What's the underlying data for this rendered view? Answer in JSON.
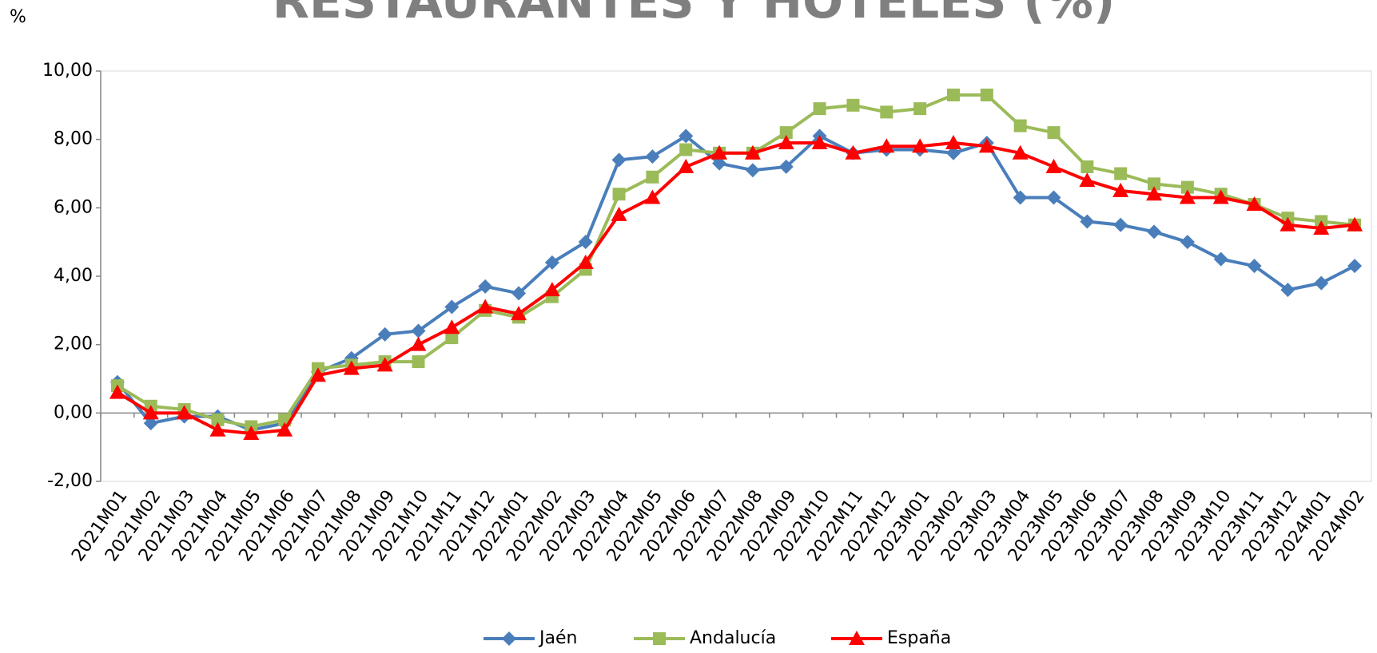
{
  "chart_data": {
    "type": "line",
    "title": "RESTAURANTES Y HOTELES (%)",
    "y_label": "%",
    "categories": [
      "2021M01",
      "2021M02",
      "2021M03",
      "2021M04",
      "2021M05",
      "2021M06",
      "2021M07",
      "2021M08",
      "2021M09",
      "2021M10",
      "2021M11",
      "2021M12",
      "2022M01",
      "2022M02",
      "2022M03",
      "2022M04",
      "2022M05",
      "2022M06",
      "2022M07",
      "2022M08",
      "2022M09",
      "2022M10",
      "2022M11",
      "2022M12",
      "2023M01",
      "2023M02",
      "2023M03",
      "2023M04",
      "2023M05",
      "2023M06",
      "2023M07",
      "2023M08",
      "2023M09",
      "2023M10",
      "2023M11",
      "2023M12",
      "2024M01",
      "2024M02"
    ],
    "series": [
      {
        "name": "Jaén",
        "color": "#4a7ebb",
        "marker": "diamond",
        "values": [
          0.9,
          -0.3,
          -0.1,
          -0.1,
          -0.5,
          -0.3,
          1.2,
          1.6,
          2.3,
          2.4,
          3.1,
          3.7,
          3.5,
          4.4,
          5.0,
          7.4,
          7.5,
          8.1,
          7.3,
          7.1,
          7.2,
          8.1,
          7.6,
          7.7,
          7.7,
          7.6,
          7.9,
          6.3,
          6.3,
          5.6,
          5.5,
          5.3,
          5.0,
          4.5,
          4.3,
          3.6,
          3.8,
          4.3
        ]
      },
      {
        "name": "Andalucía",
        "color": "#9bbb59",
        "marker": "square",
        "values": [
          0.8,
          0.2,
          0.1,
          -0.2,
          -0.4,
          -0.2,
          1.3,
          1.4,
          1.5,
          1.5,
          2.2,
          3.0,
          2.8,
          3.4,
          4.2,
          6.4,
          6.9,
          7.7,
          7.6,
          7.6,
          8.2,
          8.9,
          9.0,
          8.8,
          8.9,
          9.3,
          9.3,
          8.4,
          8.2,
          7.2,
          7.0,
          6.7,
          6.6,
          6.4,
          6.1,
          5.7,
          5.6,
          5.5
        ]
      },
      {
        "name": "España",
        "color": "#ff0000",
        "marker": "triangle",
        "values": [
          0.6,
          0.0,
          0.0,
          -0.5,
          -0.6,
          -0.5,
          1.1,
          1.3,
          1.4,
          2.0,
          2.5,
          3.1,
          2.9,
          3.6,
          4.4,
          5.8,
          6.3,
          7.2,
          7.6,
          7.6,
          7.9,
          7.9,
          7.6,
          7.8,
          7.8,
          7.9,
          7.8,
          7.6,
          7.2,
          6.8,
          6.5,
          6.4,
          6.3,
          6.3,
          6.1,
          5.5,
          5.4,
          5.5
        ]
      }
    ],
    "ylim": [
      -2,
      10
    ],
    "yticks": [
      {
        "value": -2,
        "label": "-2,00"
      },
      {
        "value": 0,
        "label": "0,00"
      },
      {
        "value": 2,
        "label": "2,00"
      },
      {
        "value": 4,
        "label": "4,00"
      },
      {
        "value": 6,
        "label": "6,00"
      },
      {
        "value": 8,
        "label": "8,00"
      },
      {
        "value": 10,
        "label": "10,00"
      }
    ],
    "grid": false,
    "legend": "bottom"
  }
}
